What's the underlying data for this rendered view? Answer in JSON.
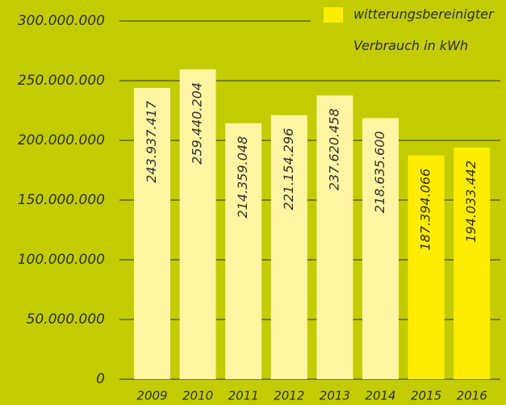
{
  "chart_data": {
    "type": "bar",
    "categories": [
      "2009",
      "2010",
      "2011",
      "2012",
      "2013",
      "2014",
      "2015",
      "2016"
    ],
    "series": [
      {
        "name": "witterungsbereinigter\nVerbrauch in kWh",
        "color": "#ffed00",
        "colors": [
          "#fff5a3",
          "#fff5a3",
          "#fff5a3",
          "#fff5a3",
          "#fff5a3",
          "#fff5a3",
          "#ffed00",
          "#ffed00"
        ],
        "values": [
          243937417,
          259440204,
          214359048,
          221154296,
          237620458,
          218635600,
          187394066,
          194033442
        ],
        "value_labels": [
          "243.937.417",
          "259.440.204",
          "214.359.048",
          "221.154.296",
          "237.620.458",
          "218.635.600",
          "187.394.066",
          "194.033.442"
        ]
      }
    ],
    "ylim": [
      0,
      300000000
    ],
    "yticks": [
      0,
      {
        "value": 50000000,
        "label": "50.000.000"
      },
      {
        "value": 100000000,
        "label": "100.000.000"
      },
      {
        "value": 150000000,
        "label": "150.000.000"
      },
      {
        "value": 200000000,
        "label": "200.000.000"
      },
      {
        "value": 250000000,
        "label": "250.000.000"
      },
      {
        "value": 300000000,
        "label": "300.000.000"
      }
    ],
    "grid": true,
    "legend": "top-right"
  }
}
